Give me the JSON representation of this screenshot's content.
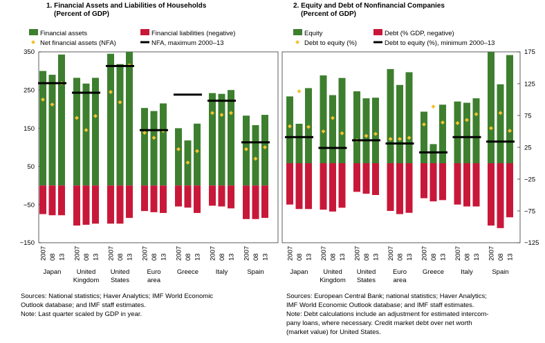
{
  "colors": {
    "assets": "#3d7f2f",
    "liabilities": "#c8183a",
    "diamond": "#f2c130",
    "nfa_line": "#000000",
    "zero_line": "#555555"
  },
  "panel1": {
    "title_line1": "1. Financial Assets and Liabilities of Households",
    "title_line2": "(Percent of GDP)",
    "legend": {
      "assets": "Financial assets",
      "liabilities": "Financial liabilities (negative)",
      "nfa": "Net financial assets (NFA)",
      "nfa_max": "NFA, maximum 2000–13"
    },
    "notes": [
      "Sources: National statistics; Haver Analytics; IMF World Economic",
      "Outlook database; and IMF staff estimates.",
      "Note: Last quarter scaled by GDP in year."
    ]
  },
  "panel2": {
    "title_line1": "2. Equity and Debt of Nonfinancial Companies",
    "title_line2": "(Percent of GDP)",
    "legend": {
      "equity": "Equity",
      "debt": "Debt (% GDP, negative)",
      "dte": "Debt to equity (%)",
      "dte_min": "Debt to equity (%), minimum 2000–13"
    },
    "notes": [
      "Sources: European Central Bank; national statistics; Haver Analytics;",
      "IMF World Economic Outlook database; and IMF staff estimates.",
      "Note: Debt calculations include an adjustment for estimated intercom-",
      "pany loans, where necessary. Credit market debt over net worth",
      "(market value) for United States."
    ]
  },
  "chart_data": [
    {
      "type": "bar",
      "title": "1. Financial Assets and Liabilities of Households",
      "subtitle": "(Percent of GDP)",
      "ylabel": "Percent of GDP",
      "ylim": [
        -150,
        350
      ],
      "yticks": [
        "350",
        "250",
        "150",
        "50",
        "−50",
        "−150"
      ],
      "ytick_values": [
        350,
        250,
        150,
        50,
        -50,
        -150
      ],
      "year_labels": [
        "2007",
        "08",
        "13"
      ],
      "categories": [
        [
          "Japan"
        ],
        [
          "United",
          "Kingdom"
        ],
        [
          "United",
          "States"
        ],
        [
          "Euro",
          "area"
        ],
        [
          "Greece"
        ],
        [
          "Italy"
        ],
        [
          "Spain"
        ]
      ],
      "series": [
        {
          "name": "Financial assets",
          "values": [
            [
              300,
              290,
              343
            ],
            [
              282,
              267,
              282
            ],
            [
              345,
              318,
              350
            ],
            [
              203,
              195,
              215
            ],
            [
              150,
              118,
              162
            ],
            [
              242,
              240,
              250
            ],
            [
              183,
              158,
              185
            ]
          ]
        },
        {
          "name": "Financial liabilities (negative)",
          "values": [
            [
              -75,
              -78,
              -78
            ],
            [
              -105,
              -103,
              -100
            ],
            [
              -100,
              -100,
              -85
            ],
            [
              -67,
              -70,
              -72
            ],
            [
              -55,
              -58,
              -72
            ],
            [
              -53,
              -55,
              -60
            ],
            [
              -88,
              -88,
              -85
            ]
          ]
        },
        {
          "name": "Net financial assets (NFA)",
          "values": [
            [
              225,
              212,
              268
            ],
            [
              177,
              145,
              182
            ],
            [
              245,
              218,
              315
            ],
            [
              138,
              125,
              143
            ],
            [
              95,
              60,
              90
            ],
            [
              190,
              185,
              190
            ],
            [
              95,
              70,
              100
            ]
          ]
        },
        {
          "name": "NFA, maximum 2000–13",
          "values": [
            268,
            243,
            313,
            145,
            238,
            222,
            113
          ]
        }
      ]
    },
    {
      "type": "bar",
      "title": "2. Equity and Debt of Nonfinancial Companies",
      "subtitle": "(Percent of GDP)",
      "ylabel": "Percent of GDP",
      "ylim": [
        -125,
        175
      ],
      "yticks": [
        "175",
        "125",
        "75",
        "25",
        "−25",
        "−75",
        "−125"
      ],
      "ytick_values": [
        175,
        125,
        75,
        25,
        -25,
        -75,
        -125
      ],
      "year_labels": [
        "2007",
        "08",
        "13"
      ],
      "categories": [
        [
          "Japan"
        ],
        [
          "United",
          "Kingdom"
        ],
        [
          "United",
          "States"
        ],
        [
          "Euro",
          "area"
        ],
        [
          "Greece"
        ],
        [
          "Italy"
        ],
        [
          "Spain"
        ]
      ],
      "series": [
        {
          "name": "Equity",
          "values": [
            [
              105,
              62,
              118
            ],
            [
              138,
              107,
              134
            ],
            [
              113,
              102,
              103
            ],
            [
              148,
              123,
              143
            ],
            [
              81,
              30,
              92
            ],
            [
              97,
              95,
              102
            ],
            [
              175,
              124,
              170
            ]
          ]
        },
        {
          "name": "Debt (% GDP, negative)",
          "values": [
            [
              -65,
              -72,
              -72
            ],
            [
              -73,
              -76,
              -70
            ],
            [
              -45,
              -48,
              -50
            ],
            [
              -75,
              -80,
              -78
            ],
            [
              -55,
              -60,
              -58
            ],
            [
              -65,
              -68,
              -68
            ],
            [
              -98,
              -102,
              -85
            ]
          ]
        },
        {
          "name": "Debt to equity (%)",
          "values": [
            [
              58,
              113,
              57
            ],
            [
              50,
              71,
              47
            ],
            [
              36,
              43,
              46
            ],
            [
              38,
              38,
              40
            ],
            [
              61,
              89,
              64
            ],
            [
              63,
              68,
              77
            ],
            [
              55,
              79,
              51
            ]
          ]
        },
        {
          "name": "Debt to equity (%), minimum 2000–13",
          "values": [
            41,
            24,
            36,
            31,
            17,
            41,
            34
          ]
        }
      ]
    }
  ]
}
